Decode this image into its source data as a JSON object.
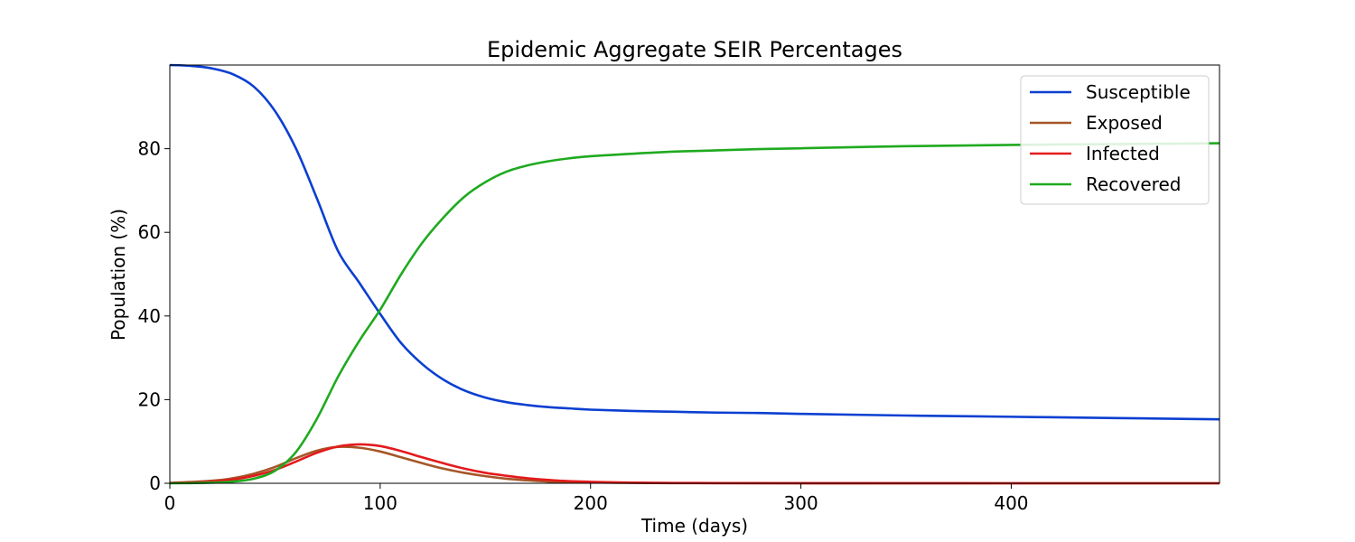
{
  "chart_data": {
    "type": "line",
    "title": "Epidemic Aggregate SEIR Percentages",
    "xlabel": "Time (days)",
    "ylabel": "Population (%)",
    "xlim": [
      0,
      499
    ],
    "ylim": [
      0,
      100
    ],
    "xticks": [
      0,
      100,
      200,
      300,
      400
    ],
    "yticks": [
      0,
      20,
      40,
      60,
      80
    ],
    "grid": false,
    "legend_position": "top-right",
    "x": [
      0,
      10,
      20,
      30,
      40,
      50,
      60,
      70,
      80,
      90,
      100,
      110,
      120,
      130,
      140,
      150,
      160,
      170,
      180,
      190,
      200,
      220,
      240,
      260,
      280,
      300,
      350,
      400,
      450,
      499
    ],
    "series": [
      {
        "name": "Susceptible",
        "color": "#0b3fd1",
        "values": [
          100,
          99.8,
          99.2,
          97.8,
          94.8,
          89,
          80,
          68,
          55.5,
          48,
          40.5,
          33.5,
          28.5,
          24.8,
          22.2,
          20.5,
          19.4,
          18.7,
          18.2,
          17.9,
          17.6,
          17.3,
          17.1,
          16.9,
          16.8,
          16.6,
          16.2,
          15.9,
          15.6,
          15.3
        ]
      },
      {
        "name": "Exposed",
        "color": "#a65628",
        "values": [
          0.1,
          0.3,
          0.6,
          1.2,
          2.3,
          3.9,
          6.0,
          7.8,
          8.7,
          8.5,
          7.6,
          6.2,
          4.8,
          3.5,
          2.5,
          1.7,
          1.1,
          0.7,
          0.4,
          0.3,
          0.2,
          0.1,
          0.05,
          0.03,
          0.02,
          0.01,
          0,
          0,
          0,
          0
        ]
      },
      {
        "name": "Infected",
        "color": "#e31a1c",
        "values": [
          0.05,
          0.2,
          0.4,
          0.9,
          1.8,
          3.2,
          5.2,
          7.3,
          8.8,
          9.3,
          8.9,
          7.7,
          6.2,
          4.8,
          3.5,
          2.5,
          1.8,
          1.2,
          0.8,
          0.5,
          0.35,
          0.15,
          0.08,
          0.05,
          0.03,
          0.02,
          0.01,
          0,
          0,
          0
        ]
      },
      {
        "name": "Recovered",
        "color": "#1faa1f",
        "values": [
          0,
          0.05,
          0.15,
          0.4,
          1.1,
          3.0,
          7.5,
          15.5,
          25.5,
          34,
          41.5,
          50,
          57.5,
          63.5,
          68.5,
          72.0,
          74.5,
          76.0,
          77.0,
          77.7,
          78.2,
          78.8,
          79.3,
          79.6,
          79.9,
          80.1,
          80.6,
          80.9,
          81.1,
          81.3
        ]
      }
    ]
  }
}
